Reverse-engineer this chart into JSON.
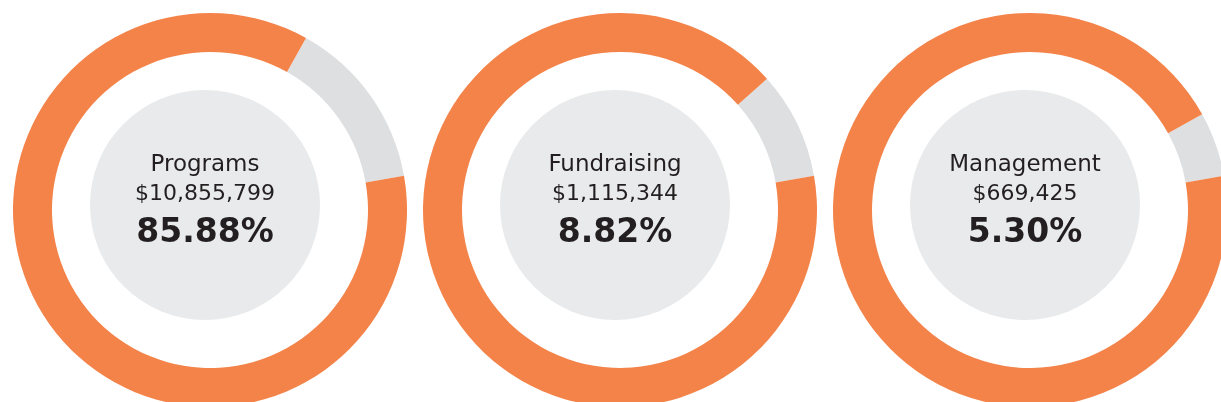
{
  "chart_data": [
    {
      "type": "donut",
      "title": "Programs",
      "categories": [
        null,
        null
      ],
      "values": [
        14.12,
        85.88
      ],
      "colors": [
        "#dedfe0",
        "#f4834a"
      ],
      "annotations": [
        "$10,855,799",
        "85.88%"
      ]
    },
    {
      "type": "donut",
      "title": "Fundraising",
      "categories": [
        null,
        null
      ],
      "values": [
        8.82,
        91.18
      ],
      "colors": [
        "#dedfe0",
        "#f4834a"
      ],
      "annotations": [
        "$1,115,344",
        "8.82%"
      ]
    },
    {
      "type": "donut",
      "title": "Management",
      "categories": [
        null,
        null
      ],
      "values": [
        5.3,
        94.7
      ],
      "colors": [
        "#dedfe0",
        "#f4834a"
      ],
      "annotations": [
        "$669,425",
        "5.30%"
      ]
    }
  ]
}
